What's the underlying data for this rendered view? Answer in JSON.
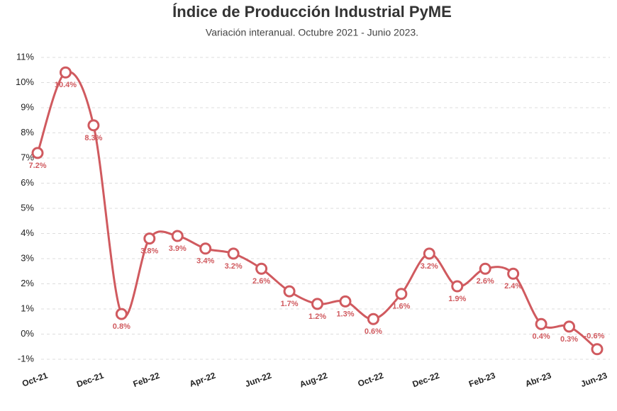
{
  "chart_data": {
    "type": "line",
    "title": "Índice de Producción Industrial PyME",
    "subtitle": "Variación interanual. Octubre 2021 - Junio 2023.",
    "categories": [
      "Oct-21",
      null,
      "Dec-21",
      null,
      "Feb-22",
      null,
      "Apr-22",
      null,
      "Jun-22",
      null,
      "Aug-22",
      null,
      "Oct-22",
      null,
      "Dec-22",
      null,
      "Feb-23",
      null,
      "Abr-23",
      null,
      "Jun-23"
    ],
    "values": [
      7.2,
      10.4,
      8.3,
      0.8,
      3.8,
      3.9,
      3.4,
      3.2,
      2.6,
      1.7,
      1.2,
      1.3,
      0.6,
      1.6,
      3.2,
      1.9,
      2.6,
      2.4,
      0.4,
      0.3,
      -0.6
    ],
    "value_labels": [
      "7.2%",
      "10.4%",
      "8.3%",
      "0.8%",
      "3.8%",
      "3.9%",
      "3.4%",
      "3.2%",
      "2.6%",
      "1.7%",
      "1.2%",
      "1.3%",
      "0.6%",
      "1.6%",
      "3.2%",
      "1.9%",
      "2.6%",
      "2.4%",
      "0.4%",
      "0.3%",
      "-0.6%"
    ],
    "color": "#d05a5f",
    "ylim": [
      -1,
      11
    ],
    "yticks": [
      {
        "value": -1,
        "label": "-1%"
      },
      {
        "value": 0,
        "label": "0%"
      },
      {
        "value": 1,
        "label": "1%"
      },
      {
        "value": 2,
        "label": "2%"
      },
      {
        "value": 3,
        "label": "3%"
      },
      {
        "value": 4,
        "label": "4%"
      },
      {
        "value": 5,
        "label": "5%"
      },
      {
        "value": 6,
        "label": "6%"
      },
      {
        "value": 7,
        "label": "7%"
      },
      {
        "value": 8,
        "label": "8%"
      },
      {
        "value": 9,
        "label": "9%"
      },
      {
        "value": 10,
        "label": "10%"
      },
      {
        "value": 11,
        "label": "11%"
      }
    ],
    "grid": true
  }
}
